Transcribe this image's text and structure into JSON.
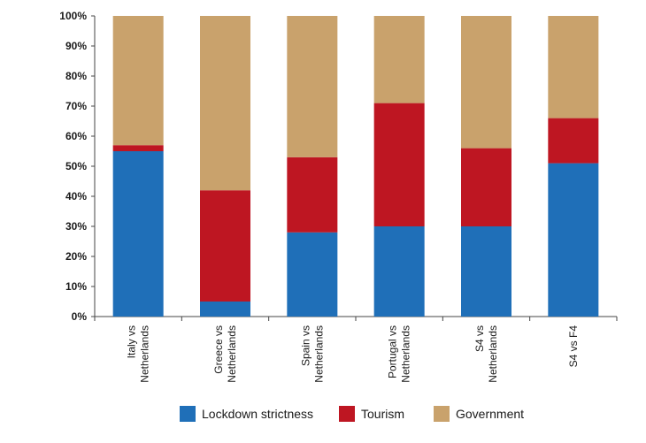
{
  "chart_data": {
    "type": "bar",
    "stacked": true,
    "normalized_percent": true,
    "title": "",
    "xlabel": "",
    "ylabel": "",
    "ylim": [
      0,
      100
    ],
    "yticks": [
      "0%",
      "10%",
      "20%",
      "30%",
      "40%",
      "50%",
      "60%",
      "70%",
      "80%",
      "90%",
      "100%"
    ],
    "grid": false,
    "legend_position": "bottom",
    "categories": [
      [
        "Italy vs",
        "Netherlands"
      ],
      [
        "Greece vs",
        "Netherlands"
      ],
      [
        "Spain vs",
        "Netherlands"
      ],
      [
        "Portugal vs",
        "Netherlands"
      ],
      [
        "S4 vs",
        "Netherlands"
      ],
      [
        "S4 vs F4"
      ]
    ],
    "series": [
      {
        "name": "Lockdown strictness",
        "color": "#1f6fb8",
        "values": [
          55,
          5,
          28,
          30,
          30,
          51
        ]
      },
      {
        "name": "Tourism",
        "color": "#be1622",
        "values": [
          2,
          37,
          25,
          41,
          26,
          15
        ]
      },
      {
        "name": "Government",
        "color": "#c9a26c",
        "values": [
          43,
          58,
          47,
          29,
          44,
          34
        ]
      }
    ]
  }
}
